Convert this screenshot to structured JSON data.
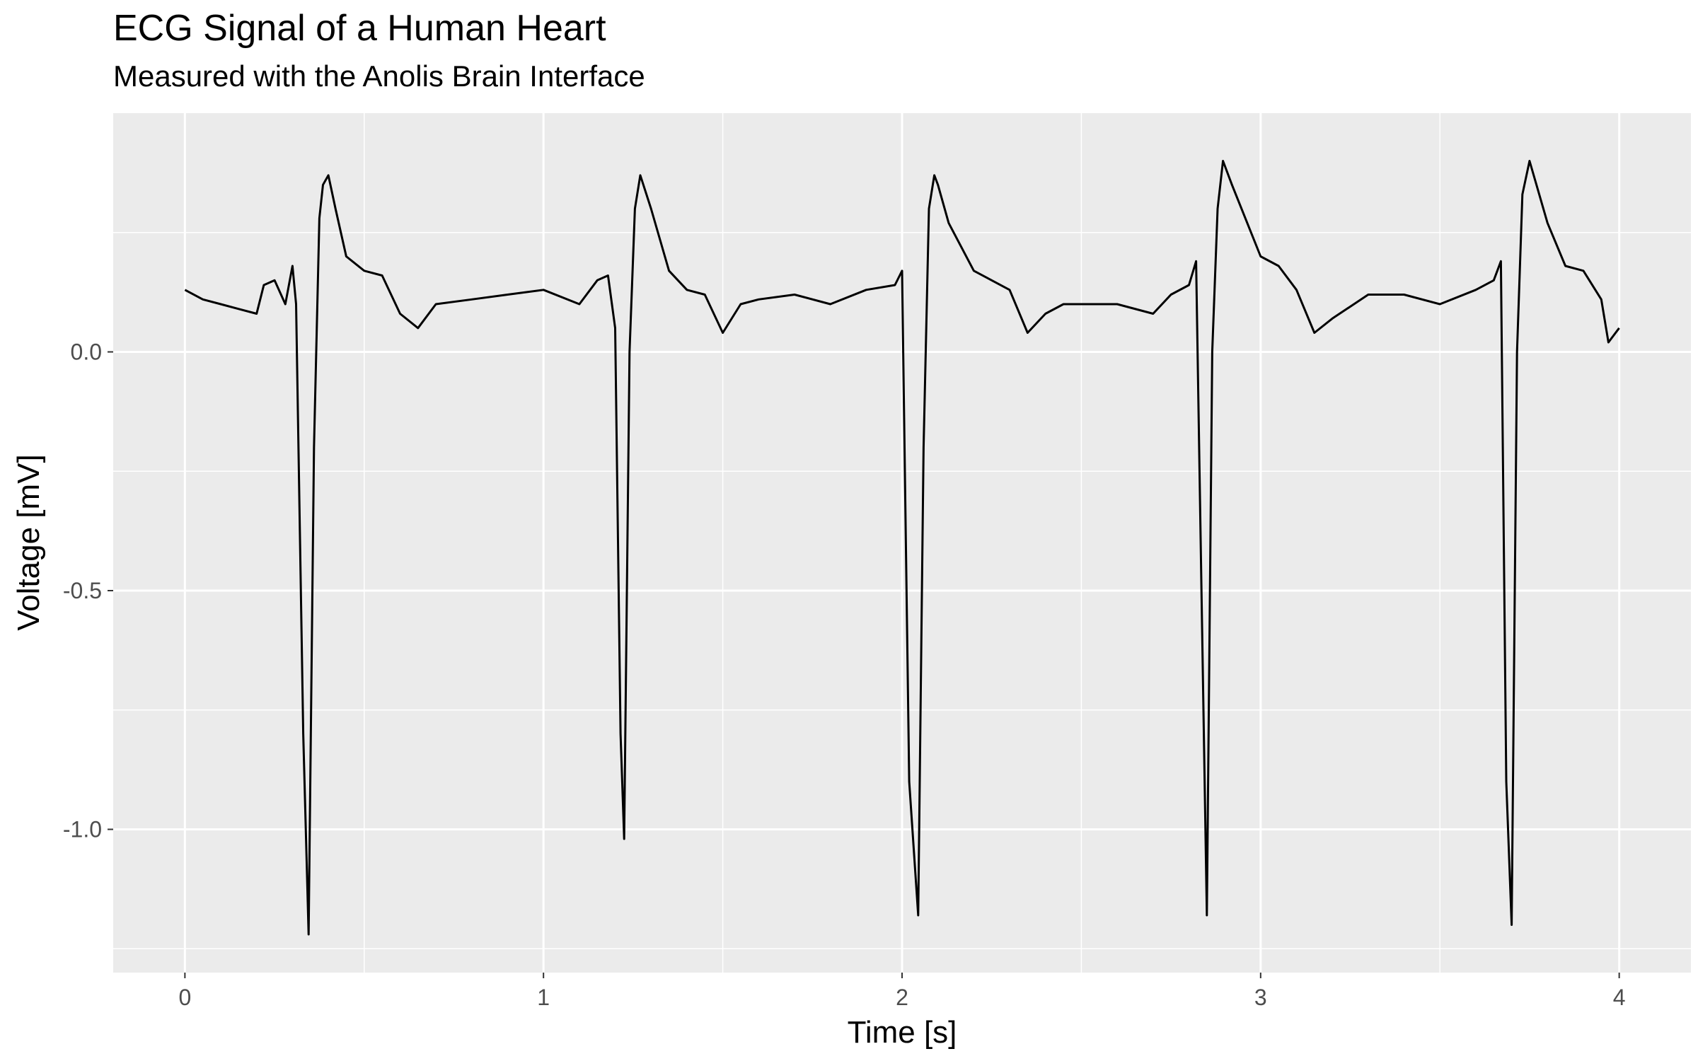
{
  "chart_data": {
    "type": "line",
    "title": "ECG Signal of a Human Heart",
    "subtitle": "Measured with the Anolis Brain Interface",
    "xlabel": "Time [s]",
    "ylabel": "Voltage [mV]",
    "xlim": [
      -0.2,
      4.2
    ],
    "ylim": [
      -1.3,
      0.5
    ],
    "x_ticks": [
      0,
      1,
      2,
      3,
      4
    ],
    "x_tick_labels": [
      "0",
      "1",
      "2",
      "3",
      "4"
    ],
    "y_ticks": [
      -1.0,
      -0.5,
      0.0
    ],
    "y_tick_labels": [
      "-1.0",
      "-0.5",
      "0.0"
    ],
    "grid": true,
    "legend": "none",
    "colors": {
      "panel": "#ebebeb",
      "grid": "#ffffff",
      "line": "#000000"
    },
    "series": [
      {
        "x": [
          0.0,
          0.05,
          0.1,
          0.15,
          0.2,
          0.22,
          0.25,
          0.28,
          0.3,
          0.31,
          0.33,
          0.345,
          0.36,
          0.375,
          0.385,
          0.4,
          0.42,
          0.45,
          0.5,
          0.55,
          0.6,
          0.65,
          0.7,
          0.8,
          0.9,
          1.0,
          1.1,
          1.15,
          1.18,
          1.2,
          1.215,
          1.225,
          1.24,
          1.255,
          1.27,
          1.3,
          1.35,
          1.4,
          1.45,
          1.5,
          1.55,
          1.6,
          1.7,
          1.8,
          1.9,
          1.98,
          2.0,
          2.02,
          2.045,
          2.06,
          2.075,
          2.09,
          2.1,
          2.13,
          2.2,
          2.3,
          2.35,
          2.4,
          2.45,
          2.5,
          2.6,
          2.7,
          2.75,
          2.8,
          2.82,
          2.835,
          2.85,
          2.865,
          2.88,
          2.895,
          2.92,
          3.0,
          3.05,
          3.1,
          3.15,
          3.2,
          3.3,
          3.4,
          3.5,
          3.6,
          3.65,
          3.67,
          3.685,
          3.7,
          3.715,
          3.73,
          3.75,
          3.8,
          3.85,
          3.9,
          3.95,
          3.97,
          4.0
        ],
        "y": [
          0.13,
          0.11,
          0.1,
          0.09,
          0.08,
          0.14,
          0.15,
          0.1,
          0.18,
          0.1,
          -0.8,
          -1.22,
          -0.2,
          0.28,
          0.35,
          0.37,
          0.3,
          0.2,
          0.17,
          0.16,
          0.08,
          0.05,
          0.1,
          0.11,
          0.12,
          0.13,
          0.1,
          0.15,
          0.16,
          0.05,
          -0.8,
          -1.02,
          0.0,
          0.3,
          0.37,
          0.3,
          0.17,
          0.13,
          0.12,
          0.04,
          0.1,
          0.11,
          0.12,
          0.1,
          0.13,
          0.14,
          0.17,
          -0.9,
          -1.18,
          -0.2,
          0.3,
          0.37,
          0.35,
          0.27,
          0.17,
          0.13,
          0.04,
          0.08,
          0.1,
          0.1,
          0.1,
          0.08,
          0.12,
          0.14,
          0.19,
          -0.5,
          -1.18,
          0.0,
          0.3,
          0.4,
          0.35,
          0.2,
          0.18,
          0.13,
          0.04,
          0.07,
          0.12,
          0.12,
          0.1,
          0.13,
          0.15,
          0.19,
          -0.9,
          -1.2,
          0.0,
          0.33,
          0.4,
          0.27,
          0.18,
          0.17,
          0.11,
          0.02,
          0.05
        ]
      }
    ]
  }
}
